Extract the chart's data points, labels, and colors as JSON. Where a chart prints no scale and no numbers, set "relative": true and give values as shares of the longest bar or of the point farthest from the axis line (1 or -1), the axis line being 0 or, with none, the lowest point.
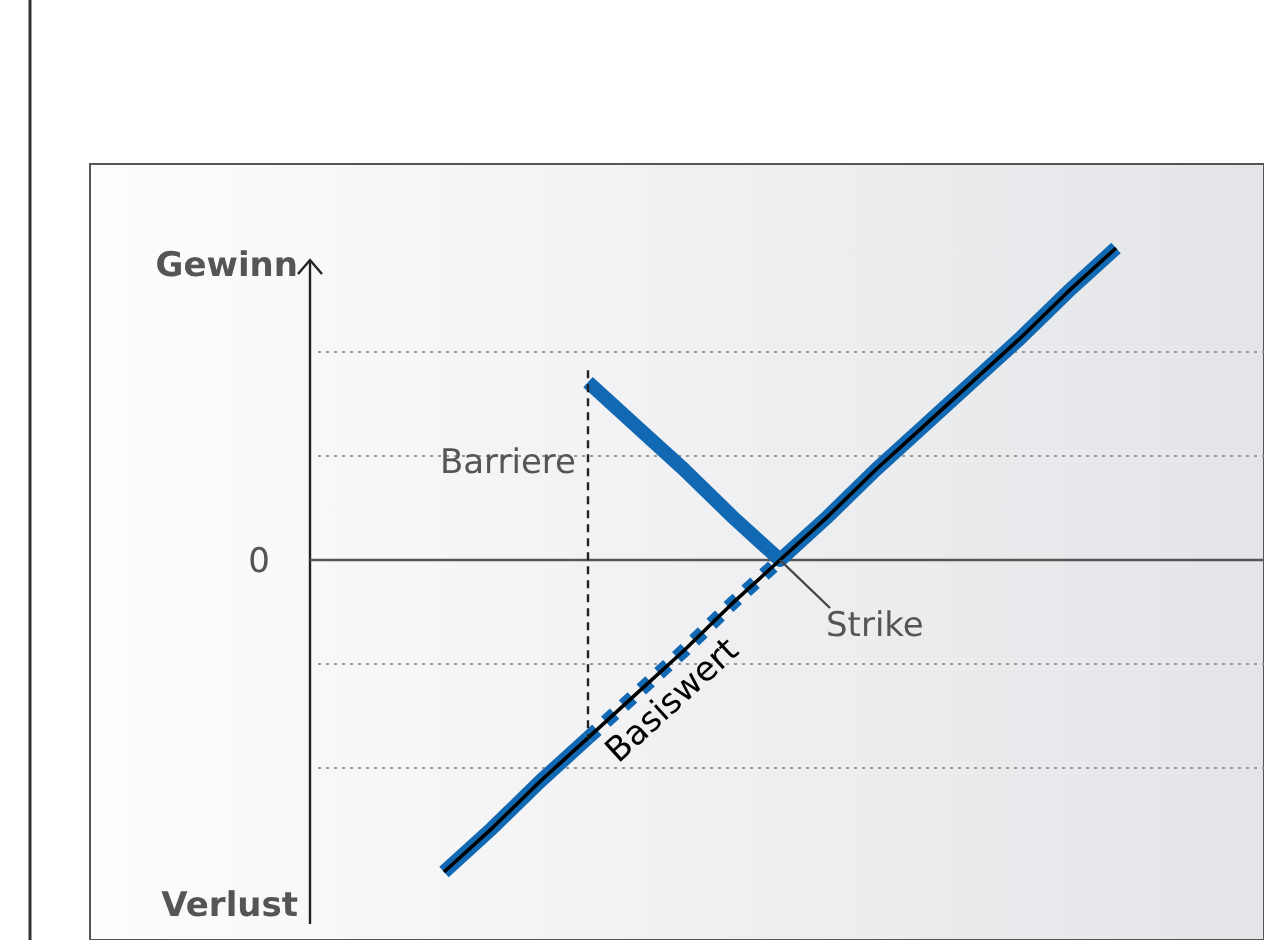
{
  "chart_data": {
    "type": "line",
    "relative": true,
    "categories": [
      null,
      null,
      null,
      null,
      null,
      null,
      null,
      null,
      null,
      null,
      null,
      null,
      null,
      null,
      null
    ],
    "series": [
      {
        "name": "Basiswert",
        "color": "#000000",
        "values": [
          -1,
          -0.86,
          -0.71,
          -0.57,
          -0.43,
          -0.29,
          -0.14,
          0,
          0.14,
          0.29,
          0.43,
          0.57,
          0.71,
          0.86,
          1
        ]
      },
      {
        "color": "#1168b3",
        "values": [
          -1,
          -0.86,
          -0.71,
          -0.57,
          null,
          null,
          null,
          null,
          null,
          null,
          null,
          null,
          null,
          null,
          null
        ]
      },
      {
        "color": "#1168b3",
        "line_style": "dotted",
        "values": [
          null,
          null,
          null,
          -0.57,
          -0.43,
          -0.29,
          -0.14,
          0,
          null,
          null,
          null,
          null,
          null,
          null,
          null
        ]
      },
      {
        "color": "#1168b3",
        "values": [
          null,
          null,
          null,
          0.57,
          0.43,
          0.29,
          0.14,
          0,
          0.14,
          0.29,
          0.43,
          0.57,
          0.71,
          0.86,
          1
        ]
      }
    ],
    "ref_lines": [
      {
        "axis": "y",
        "value": 0,
        "label": "0"
      }
    ],
    "annotations": [
      "Gewinn",
      "Verlust",
      "Barriere",
      {
        "text": "Strike",
        "y": 0
      }
    ],
    "grid": "y"
  }
}
